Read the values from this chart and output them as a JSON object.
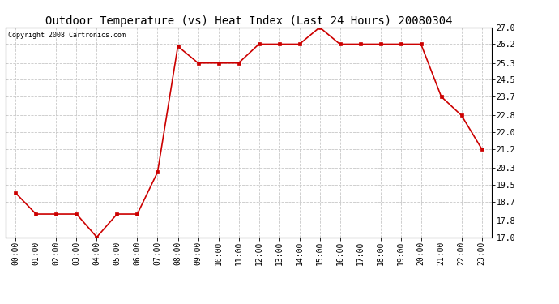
{
  "title": "Outdoor Temperature (vs) Heat Index (Last 24 Hours) 20080304",
  "copyright_text": "Copyright 2008 Cartronics.com",
  "x_labels": [
    "00:00",
    "01:00",
    "02:00",
    "03:00",
    "04:00",
    "05:00",
    "06:00",
    "07:00",
    "08:00",
    "09:00",
    "10:00",
    "11:00",
    "12:00",
    "13:00",
    "14:00",
    "15:00",
    "16:00",
    "17:00",
    "18:00",
    "19:00",
    "20:00",
    "21:00",
    "22:00",
    "23:00"
  ],
  "y_values": [
    19.1,
    18.1,
    18.1,
    18.1,
    17.0,
    18.1,
    18.1,
    20.1,
    26.1,
    25.3,
    25.3,
    25.3,
    26.2,
    26.2,
    26.2,
    27.0,
    26.2,
    26.2,
    26.2,
    26.2,
    26.2,
    23.7,
    22.8,
    21.2,
    21.2
  ],
  "line_color": "#cc0000",
  "marker_color": "#cc0000",
  "background_color": "#ffffff",
  "grid_color": "#c8c8c8",
  "y_ticks": [
    17.0,
    17.8,
    18.7,
    19.5,
    20.3,
    21.2,
    22.0,
    22.8,
    23.7,
    24.5,
    25.3,
    26.2,
    27.0
  ],
  "y_min": 17.0,
  "y_max": 27.0,
  "title_fontsize": 10,
  "copyright_fontsize": 6,
  "tick_fontsize": 7
}
